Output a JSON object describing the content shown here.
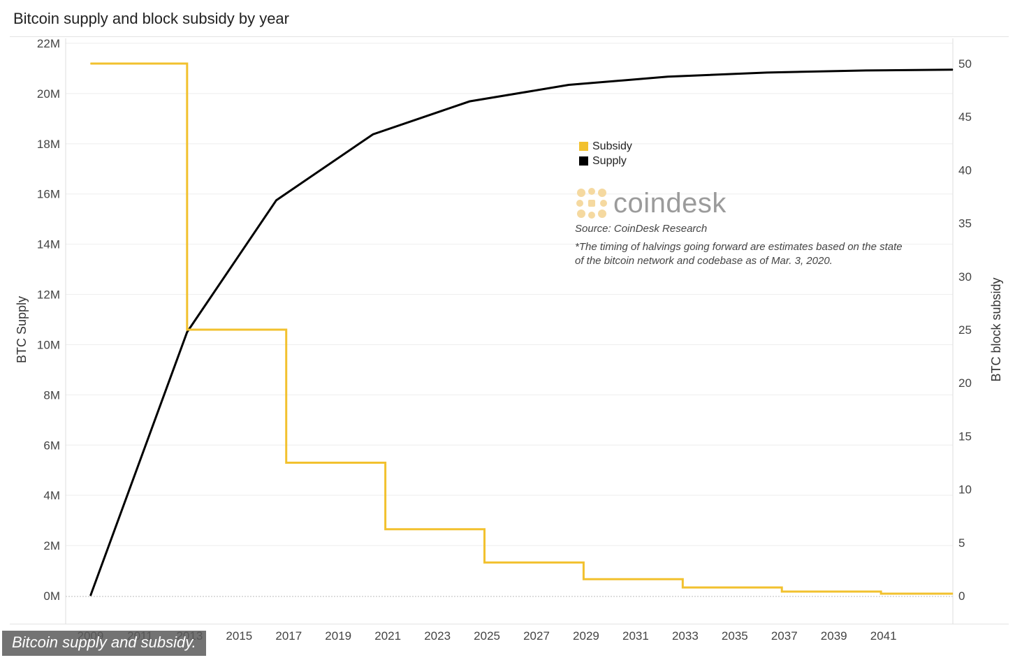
{
  "title": "Bitcoin supply and block subsidy by year",
  "caption": "Bitcoin supply and subsidy.",
  "legend": [
    {
      "label": "Subsidy",
      "color": "#F2C12E"
    },
    {
      "label": "Supply",
      "color": "#000000"
    }
  ],
  "watermark": {
    "text": "coindesk",
    "icon": "coindesk-logo-icon"
  },
  "source": "Source: CoinDesk Research",
  "note": "*The timing of halvings going forward are estimates based on the state of the bitcoin network and codebase as of Mar. 3, 2020.",
  "chart_data": {
    "type": "line",
    "xlabel": "",
    "ylabel": "BTC Supply",
    "y2label": "BTC block subsidy",
    "xlim": [
      2008,
      2043.8
    ],
    "ylim": [
      0,
      22000000
    ],
    "y2lim": [
      0,
      50
    ],
    "x_ticks": [
      2009,
      2011,
      2013,
      2015,
      2017,
      2019,
      2021,
      2023,
      2025,
      2027,
      2029,
      2031,
      2033,
      2035,
      2037,
      2039,
      2041
    ],
    "y_ticks": [
      {
        "value": 0,
        "label": "0M"
      },
      {
        "value": 2000000,
        "label": "2M"
      },
      {
        "value": 4000000,
        "label": "4M"
      },
      {
        "value": 6000000,
        "label": "6M"
      },
      {
        "value": 8000000,
        "label": "8M"
      },
      {
        "value": 10000000,
        "label": "10M"
      },
      {
        "value": 12000000,
        "label": "12M"
      },
      {
        "value": 14000000,
        "label": "14M"
      },
      {
        "value": 16000000,
        "label": "16M"
      },
      {
        "value": 18000000,
        "label": "18M"
      },
      {
        "value": 20000000,
        "label": "20M"
      },
      {
        "value": 22000000,
        "label": "22M"
      }
    ],
    "y2_ticks": [
      0,
      5,
      10,
      15,
      20,
      25,
      30,
      35,
      40,
      45,
      50
    ],
    "grid": true,
    "series": [
      {
        "name": "Supply",
        "axis": "left",
        "color": "#000000",
        "step": false,
        "x": [
          2009,
          2012.9,
          2016.5,
          2020.4,
          2024.3,
          2028.3,
          2032.3,
          2036.3,
          2040.3,
          2043.8
        ],
        "y": [
          0,
          10500000,
          15750000,
          18375000,
          19687500,
          20343750,
          20671875,
          20835938,
          20917969,
          20950000
        ]
      },
      {
        "name": "Subsidy",
        "axis": "right",
        "color": "#F2C12E",
        "step": true,
        "x": [
          2009,
          2012.9,
          2016.9,
          2020.9,
          2024.9,
          2028.9,
          2032.9,
          2036.9,
          2040.9,
          2043.8
        ],
        "y": [
          50,
          25,
          12.5,
          6.25,
          3.125,
          1.5625,
          0.78125,
          0.390625,
          0.1953125,
          0.1953125
        ]
      }
    ],
    "legend_position": "center"
  }
}
